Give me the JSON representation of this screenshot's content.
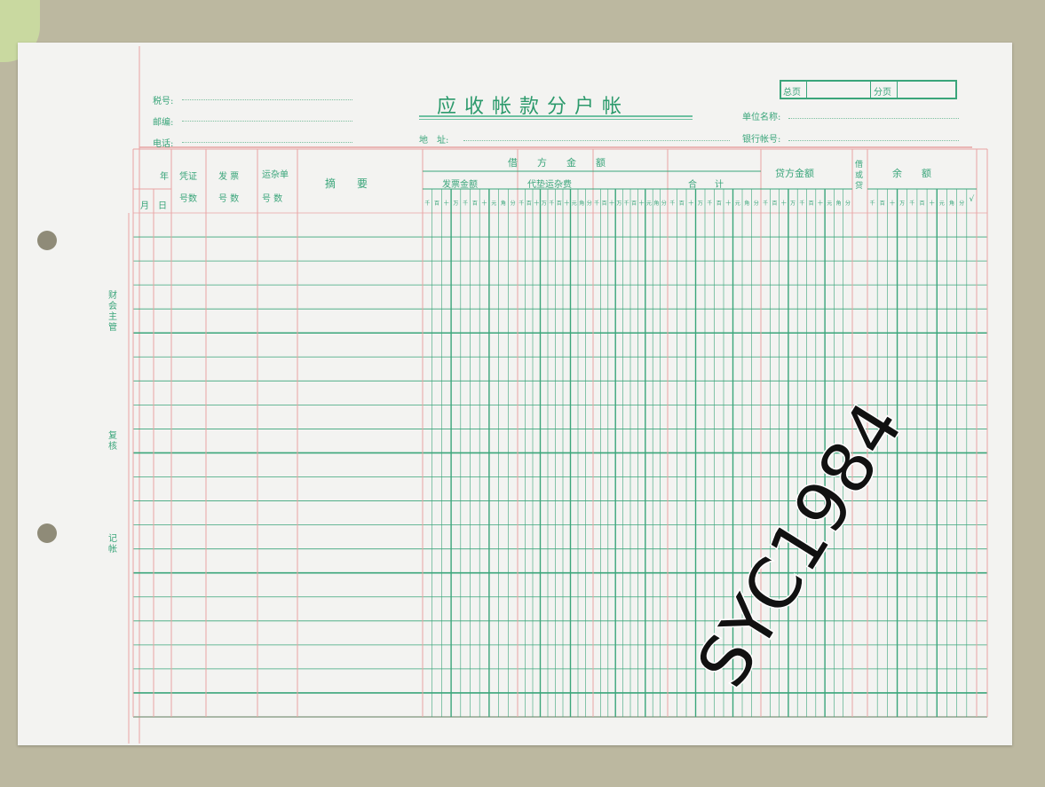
{
  "form": {
    "title": "应收帐款分户帐",
    "tax_no_label": "税号:",
    "postcode_label": "邮编:",
    "phone_label": "电话:",
    "address_label": "地　址:",
    "unit_name_label": "单位名称:",
    "bank_account_label": "银行帐号:",
    "total_pages_label": "总页",
    "sub_page_label": "分页"
  },
  "side_labels": [
    "财会主管",
    "复核",
    "记帐"
  ],
  "headers": {
    "year": "年",
    "month": "月",
    "day": "日",
    "voucher": [
      "凭证",
      "号数"
    ],
    "invoice": [
      "发 票",
      "号 数"
    ],
    "freight_slip": [
      "运杂单",
      "号 数"
    ],
    "summary": "摘　　要",
    "debit": "借　　方　　金　　额",
    "invoice_amount": "发票金额",
    "freight_advance": "代垫运杂费",
    "total": "合　　计",
    "credit": "贷方金额",
    "debit_or_credit": "借或贷",
    "balance": "余　　额",
    "check_mark": "√"
  },
  "digit_labels": [
    "千",
    "百",
    "十",
    "万",
    "千",
    "百",
    "十",
    "元",
    "角",
    "分"
  ],
  "watermark": "SYC1984",
  "colors": {
    "green": "#3aa57a",
    "red": "#e8a3a3",
    "paper": "#f3f3f1",
    "background": "#bcb8a0"
  }
}
